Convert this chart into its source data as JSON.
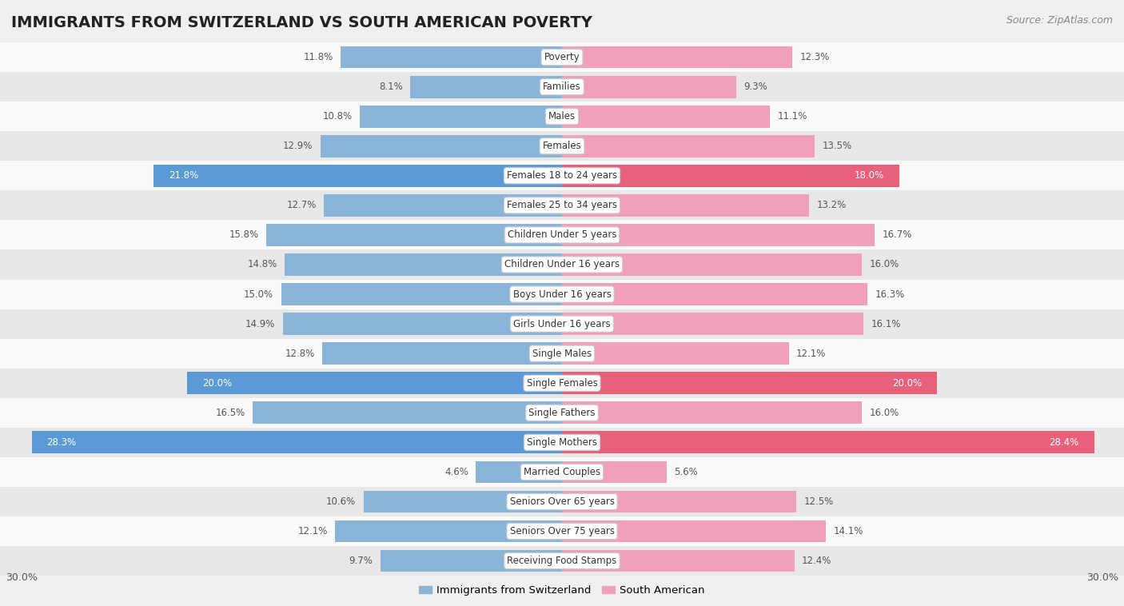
{
  "title": "IMMIGRANTS FROM SWITZERLAND VS SOUTH AMERICAN POVERTY",
  "source": "Source: ZipAtlas.com",
  "categories": [
    "Poverty",
    "Families",
    "Males",
    "Females",
    "Females 18 to 24 years",
    "Females 25 to 34 years",
    "Children Under 5 years",
    "Children Under 16 years",
    "Boys Under 16 years",
    "Girls Under 16 years",
    "Single Males",
    "Single Females",
    "Single Fathers",
    "Single Mothers",
    "Married Couples",
    "Seniors Over 65 years",
    "Seniors Over 75 years",
    "Receiving Food Stamps"
  ],
  "switzerland_values": [
    11.8,
    8.1,
    10.8,
    12.9,
    21.8,
    12.7,
    15.8,
    14.8,
    15.0,
    14.9,
    12.8,
    20.0,
    16.5,
    28.3,
    4.6,
    10.6,
    12.1,
    9.7
  ],
  "south_american_values": [
    12.3,
    9.3,
    11.1,
    13.5,
    18.0,
    13.2,
    16.7,
    16.0,
    16.3,
    16.1,
    12.1,
    20.0,
    16.0,
    28.4,
    5.6,
    12.5,
    14.1,
    12.4
  ],
  "switzerland_color": "#8ab4d8",
  "south_american_color": "#f0a0b8",
  "switzerland_highlight_color": "#5b9bd5",
  "south_american_highlight_color": "#e8607a",
  "highlight_rows": [
    4,
    11,
    13
  ],
  "max_val": 30.0,
  "bg_color": "#f0f0f0",
  "row_bg_light": "#fafafa",
  "row_bg_dark": "#e8e8e8",
  "label_color_normal": "#555555",
  "label_color_highlight": "#ffffff",
  "title_fontsize": 14,
  "source_fontsize": 9,
  "bar_height": 0.75,
  "legend_switzerland": "Immigrants from Switzerland",
  "legend_south_american": "South American",
  "axis_label_left": "30.0%",
  "axis_label_right": "30.0%"
}
